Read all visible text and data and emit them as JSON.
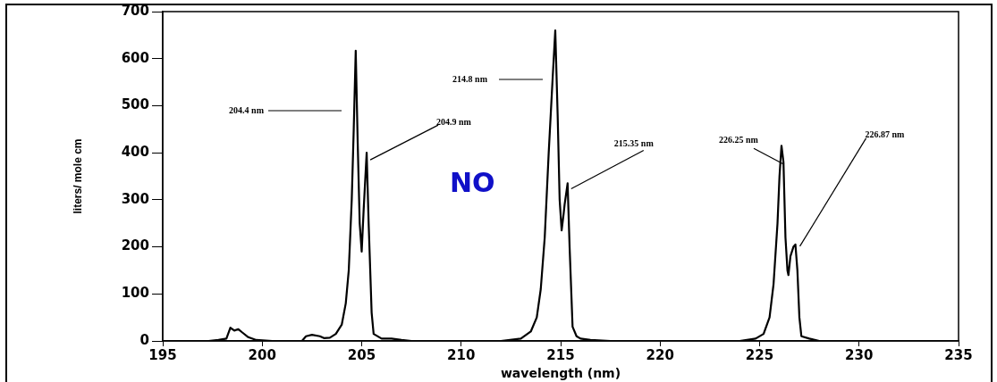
{
  "chart_data": {
    "type": "line",
    "title": "NO",
    "xlabel": "wavelength (nm)",
    "ylabel": "liters/ mole cm",
    "x": [
      197.3,
      197.8,
      198.2,
      198.4,
      198.6,
      198.8,
      199.0,
      199.3,
      199.7,
      200.5,
      202.0,
      202.2,
      202.5,
      202.9,
      203.1,
      203.4,
      203.7,
      204.0,
      204.2,
      204.35,
      204.5,
      204.6,
      204.7,
      204.8,
      204.9,
      205.0,
      205.1,
      205.25,
      205.35,
      205.5,
      205.6,
      206.0,
      206.5,
      207.0,
      207.5,
      212.0,
      213.0,
      213.5,
      213.8,
      214.0,
      214.2,
      214.4,
      214.6,
      214.73,
      214.85,
      214.95,
      215.05,
      215.15,
      215.2,
      215.3,
      215.35,
      215.45,
      215.6,
      215.8,
      216.0,
      216.5,
      217.5,
      224.0,
      224.8,
      225.2,
      225.5,
      225.7,
      225.9,
      226.0,
      226.1,
      226.2,
      226.3,
      226.4,
      226.45,
      226.55,
      226.7,
      226.8,
      226.9,
      227.0,
      227.1,
      227.5,
      228.0,
      231.9
    ],
    "series": [
      {
        "color": "#000000",
        "values": [
          0,
          2,
          5,
          28,
          22,
          25,
          18,
          8,
          2,
          0,
          0,
          10,
          13,
          10,
          6,
          7,
          15,
          35,
          80,
          150,
          300,
          450,
          617,
          420,
          250,
          190,
          280,
          400,
          250,
          60,
          15,
          5,
          5,
          2,
          0,
          0,
          5,
          20,
          50,
          110,
          220,
          400,
          560,
          660,
          480,
          300,
          235,
          270,
          290,
          320,
          335,
          200,
          30,
          10,
          5,
          2,
          0,
          0,
          5,
          15,
          50,
          120,
          250,
          350,
          415,
          380,
          220,
          150,
          140,
          180,
          200,
          205,
          150,
          50,
          10,
          5,
          0,
          0
        ]
      }
    ],
    "xlim": [
      195,
      235
    ],
    "xticks": [
      195,
      200,
      205,
      210,
      215,
      220,
      225,
      230,
      235
    ],
    "ylim": [
      0,
      700
    ],
    "yticks": [
      0,
      100,
      200,
      300,
      400,
      500,
      600,
      700
    ],
    "grid": false,
    "legend": false,
    "marker": "none",
    "line_style": "solid",
    "annotations": [
      "204.4 nm",
      {
        "text": "204.9 nm",
        "x": 205.25,
        "y": 400
      },
      "214.8 nm",
      {
        "text": "215.35 nm",
        "x": 215.35,
        "y": 335
      },
      {
        "text": "226.25 nm",
        "x": 226.1,
        "y": 415
      },
      {
        "text": "226.87 nm",
        "x": 226.8,
        "y": 205
      }
    ]
  }
}
